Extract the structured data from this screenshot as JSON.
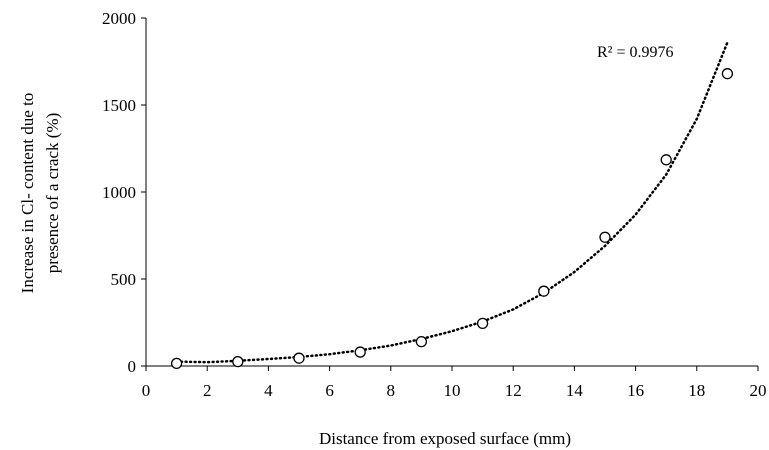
{
  "chart_data": {
    "type": "scatter",
    "xlabel": "Distance from exposed surface (mm)",
    "ylabel_lines": [
      "Increase in Cl- content due to",
      "presence of a crack (%)"
    ],
    "xlim": [
      0,
      20
    ],
    "ylim": [
      0,
      2000
    ],
    "xticks": [
      0,
      2,
      4,
      6,
      8,
      10,
      12,
      14,
      16,
      18,
      20
    ],
    "yticks": [
      0,
      500,
      1000,
      1500,
      2000
    ],
    "grid": false,
    "legend": "none",
    "series": [
      {
        "marker": "open-circle",
        "x": [
          1,
          3,
          5,
          7,
          9,
          11,
          13,
          15,
          17,
          19
        ],
        "y": [
          15,
          25,
          45,
          80,
          140,
          245,
          430,
          740,
          1185,
          1680
        ]
      }
    ],
    "trendline": {
      "style": "dotted",
      "x": [
        1,
        2,
        3,
        4,
        5,
        6,
        7,
        8,
        9,
        10,
        11,
        12,
        13,
        14,
        15,
        16,
        17,
        18,
        19
      ],
      "y": [
        25,
        22,
        30,
        40,
        52,
        68,
        90,
        118,
        155,
        200,
        255,
        325,
        420,
        540,
        690,
        870,
        1100,
        1420,
        1860
      ],
      "annotation": "R² = 0.9976"
    }
  }
}
